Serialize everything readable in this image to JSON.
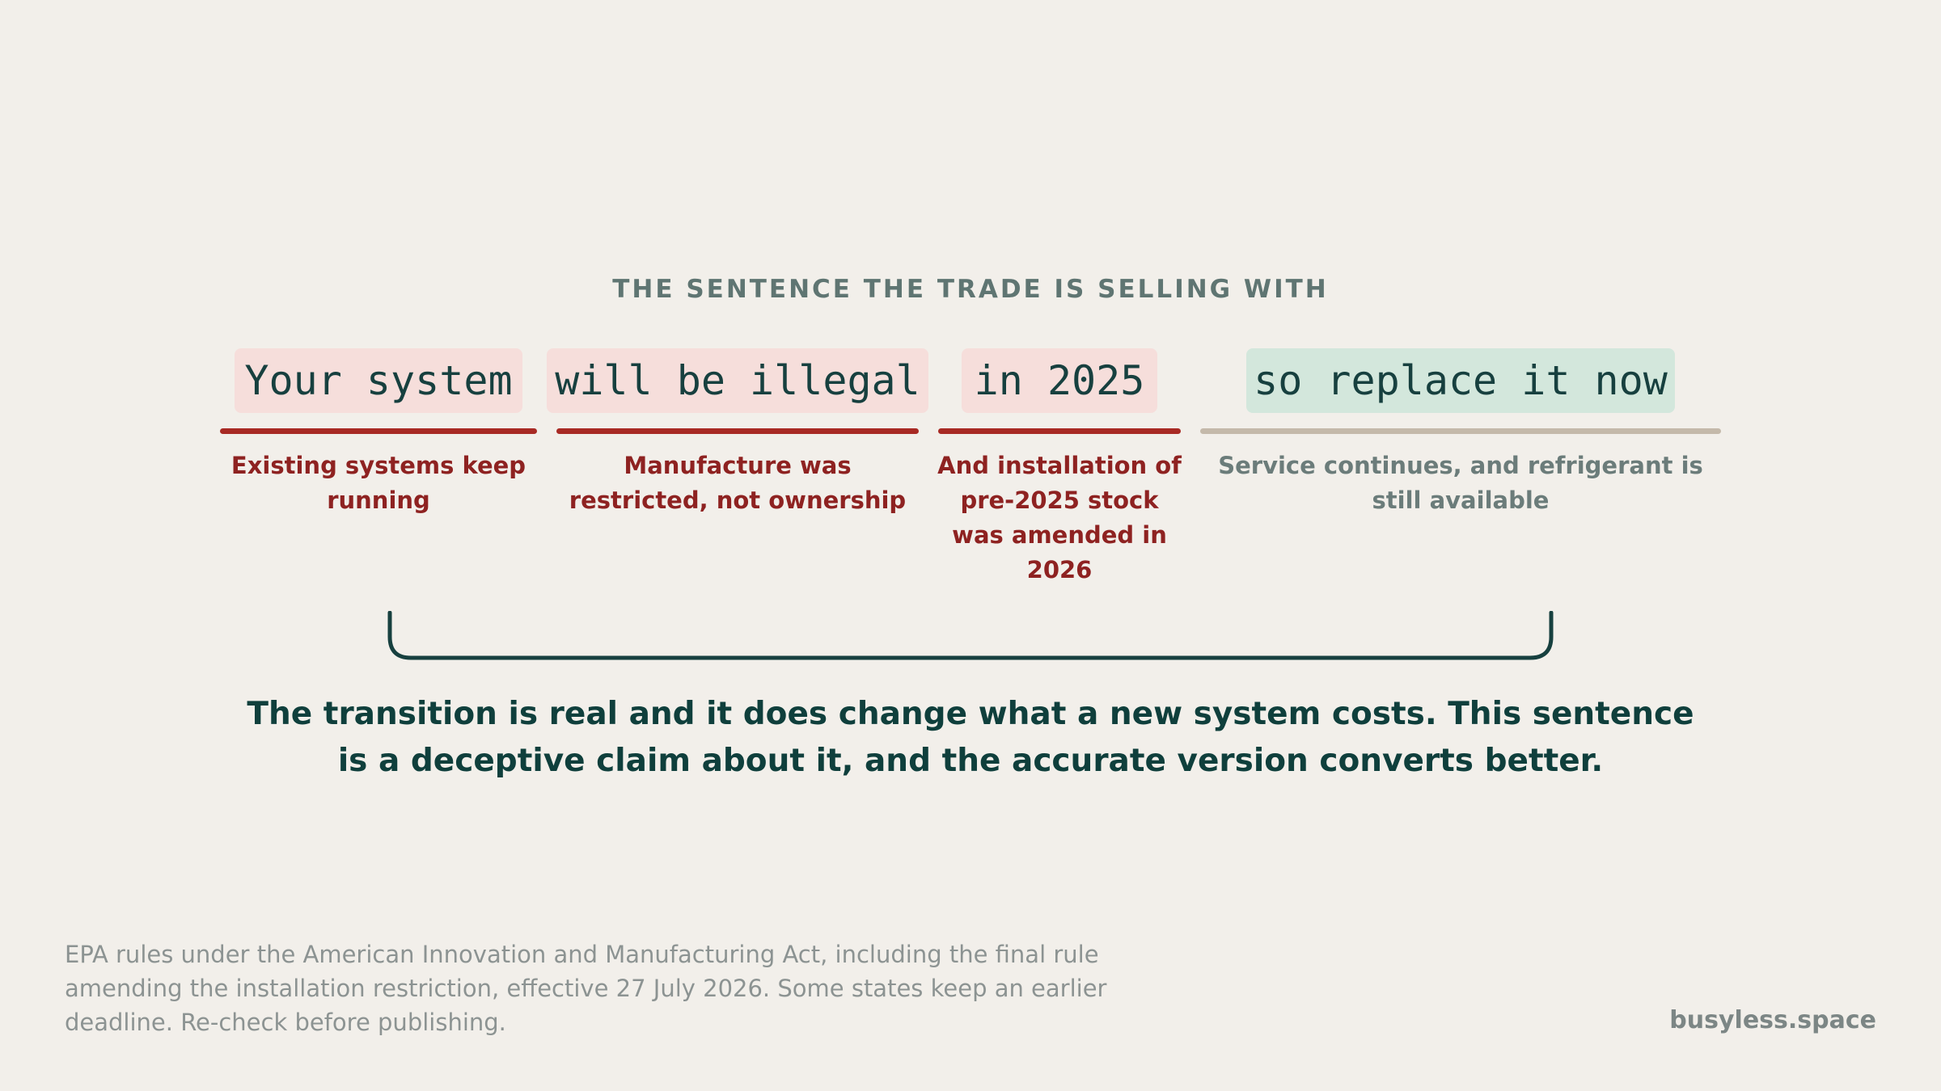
{
  "eyebrow": "THE SENTENCE THE TRADE IS SELLING WITH",
  "segments": [
    {
      "phrase": "Your system",
      "note": "Existing systems keep running",
      "status": "misleading"
    },
    {
      "phrase": "will be illegal",
      "note": "Manufacture was restricted, not ownership",
      "status": "misleading"
    },
    {
      "phrase": "in 2025",
      "note": "And installation of pre-2025 stock was amended in 2026",
      "status": "misleading"
    },
    {
      "phrase": "so replace it now",
      "note": "Service continues, and refrigerant is still available",
      "status": "neutral"
    }
  ],
  "conclusion": "The transition is real and it does change what a new system costs. This sentence is a deceptive claim about it, and the accurate version converts better.",
  "source": "EPA rules under the American Innovation and Manufacturing Act, including the final rule amending the installation restriction, effective 27 July 2026. Some states keep an earlier deadline. Re-check before publishing.",
  "brand": "busyless.space",
  "colors": {
    "background": "#f2efea",
    "misleading_chip": "#f6dedb",
    "true_chip": "#d3e7dc",
    "misleading_rule": "#a82a24",
    "neutral_rule": "#c4b9aa",
    "misleading_text": "#8e2221",
    "heading_teal": "#0f3f3c"
  }
}
